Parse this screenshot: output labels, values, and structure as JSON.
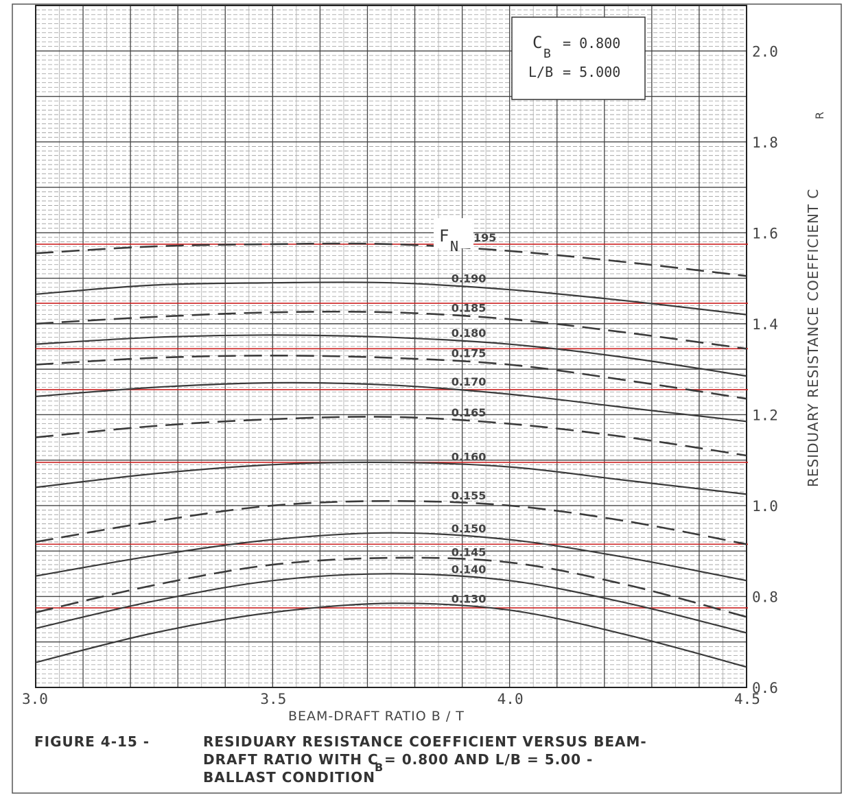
{
  "chart_data": {
    "type": "line",
    "xlabel": "BEAM-DRAFT RATIO  B / T",
    "ylabel": "RESIDUARY  RESISTANCE COEFFICIENT  C",
    "ylabel_sub": "R",
    "xlim": [
      3.0,
      4.5
    ],
    "ylim": [
      0.6,
      2.1
    ],
    "x_ticks": [
      "3.0",
      "3.5",
      "4.0",
      "4.5"
    ],
    "x_tick_values": [
      3.0,
      3.5,
      4.0,
      4.5
    ],
    "y_ticks": [
      "0.6",
      "0.8",
      "1.0",
      "1.2",
      "1.4",
      "1.6",
      "1.8",
      "2.0"
    ],
    "y_tick_values": [
      0.6,
      0.8,
      1.0,
      1.2,
      1.4,
      1.6,
      1.8,
      2.0
    ],
    "grid": true,
    "params": {
      "cb_label": "C",
      "cb_sub": "B",
      "cb_value": "= 0.800",
      "lb_label": "L/B",
      "lb_value": "= 5.000"
    },
    "fn_label": "F",
    "fn_sub": "N",
    "x": [
      3.0,
      3.25,
      3.5,
      3.75,
      4.0,
      4.25,
      4.5
    ],
    "series": [
      {
        "name": "= 0.195",
        "style": "dashed",
        "values": [
          1.555,
          1.57,
          1.575,
          1.575,
          1.56,
          1.535,
          1.505
        ]
      },
      {
        "name": "0.190",
        "style": "solid",
        "values": [
          1.465,
          1.485,
          1.49,
          1.49,
          1.475,
          1.45,
          1.42
        ]
      },
      {
        "name": "0.185",
        "style": "dashed",
        "values": [
          1.4,
          1.415,
          1.425,
          1.425,
          1.41,
          1.38,
          1.345
        ]
      },
      {
        "name": "0.180",
        "style": "solid",
        "values": [
          1.355,
          1.37,
          1.375,
          1.37,
          1.355,
          1.325,
          1.285
        ]
      },
      {
        "name": "0.175",
        "style": "dashed",
        "values": [
          1.31,
          1.325,
          1.33,
          1.325,
          1.31,
          1.275,
          1.235
        ]
      },
      {
        "name": "0.170",
        "style": "solid",
        "values": [
          1.24,
          1.26,
          1.27,
          1.265,
          1.245,
          1.215,
          1.185
        ]
      },
      {
        "name": "0.165",
        "style": "dashed",
        "values": [
          1.15,
          1.175,
          1.19,
          1.195,
          1.18,
          1.15,
          1.11
        ]
      },
      {
        "name": "0.160",
        "style": "solid",
        "values": [
          1.04,
          1.07,
          1.09,
          1.095,
          1.085,
          1.055,
          1.025
        ]
      },
      {
        "name": "0.155",
        "style": "dashed",
        "values": [
          0.92,
          0.965,
          1.0,
          1.01,
          1.0,
          0.965,
          0.915
        ]
      },
      {
        "name": "0.150",
        "style": "solid",
        "values": [
          0.845,
          0.89,
          0.925,
          0.94,
          0.925,
          0.885,
          0.835
        ]
      },
      {
        "name": "0.145",
        "style": "dashed",
        "values": [
          0.765,
          0.825,
          0.87,
          0.885,
          0.875,
          0.825,
          0.755
        ]
      },
      {
        "name": "0.140",
        "style": "solid",
        "values": [
          0.73,
          0.79,
          0.835,
          0.85,
          0.835,
          0.785,
          0.72
        ]
      },
      {
        "name": "0.130",
        "style": "solid",
        "values": [
          0.655,
          0.72,
          0.765,
          0.785,
          0.77,
          0.715,
          0.645
        ]
      }
    ],
    "reference_lines": {
      "color": "#cc2222",
      "values": [
        1.575,
        1.445,
        1.345,
        1.255,
        1.095,
        0.915,
        0.775
      ]
    },
    "caption": {
      "prefix": "FIGURE 4-15   -",
      "line1": "RESIDUARY RESISTANCE COEFFICIENT VERSUS BEAM-",
      "line2a": "DRAFT RATIO WITH C",
      "line2sub": "B",
      "line2b": " = 0.800 AND L/B = 5.00 -",
      "line3": "BALLAST CONDITION"
    }
  }
}
